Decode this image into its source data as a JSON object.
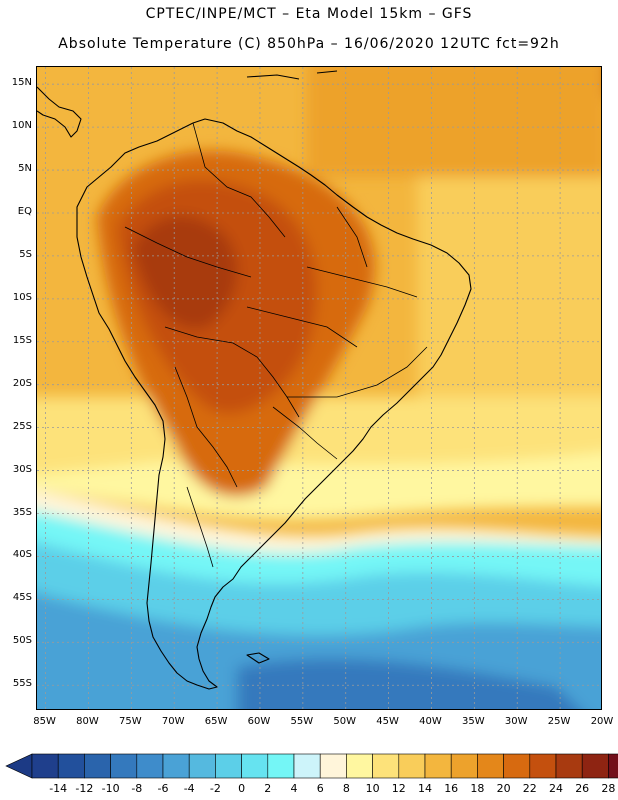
{
  "header": {
    "line1": "CPTEC/INPE/MCT –  Eta Model 15km – GFS",
    "line2": "Absolute Temperature (C) 850hPa – 16/06/2020 12UTC fct=92h"
  },
  "map": {
    "region": "South America",
    "lat_labels": [
      "15N",
      "10N",
      "5N",
      "EQ",
      "5S",
      "10S",
      "15S",
      "20S",
      "25S",
      "30S",
      "35S",
      "40S",
      "45S",
      "50S",
      "55S"
    ],
    "lon_labels": [
      "85W",
      "80W",
      "75W",
      "70W",
      "65W",
      "60W",
      "55W",
      "50W",
      "45W",
      "40W",
      "35W",
      "30W",
      "25W",
      "20W"
    ],
    "lat_range": [
      17,
      -58
    ],
    "lon_range": [
      -86,
      -20
    ]
  },
  "colorbar": {
    "labels": [
      "-14",
      "-12",
      "-10",
      "-8",
      "-6",
      "-4",
      "-2",
      "0",
      "2",
      "4",
      "6",
      "8",
      "10",
      "12",
      "14",
      "16",
      "18",
      "20",
      "22",
      "24",
      "26",
      "28"
    ],
    "colors": [
      "#1f3f8c",
      "#22509c",
      "#2a64ac",
      "#3479bd",
      "#3e8ccb",
      "#4aa2d6",
      "#55b9df",
      "#5ccfe8",
      "#66e3f0",
      "#74f6f6",
      "#cdf4fa",
      "#fff5da",
      "#fff7a0",
      "#fde27a",
      "#f9cd5a",
      "#f3b63e",
      "#eda22c",
      "#e4871a",
      "#d76a10",
      "#c4500e",
      "#a83a10",
      "#8e2412",
      "#730e1a"
    ],
    "under_color": "#1c3a85",
    "over_color": "#6a0d26"
  }
}
